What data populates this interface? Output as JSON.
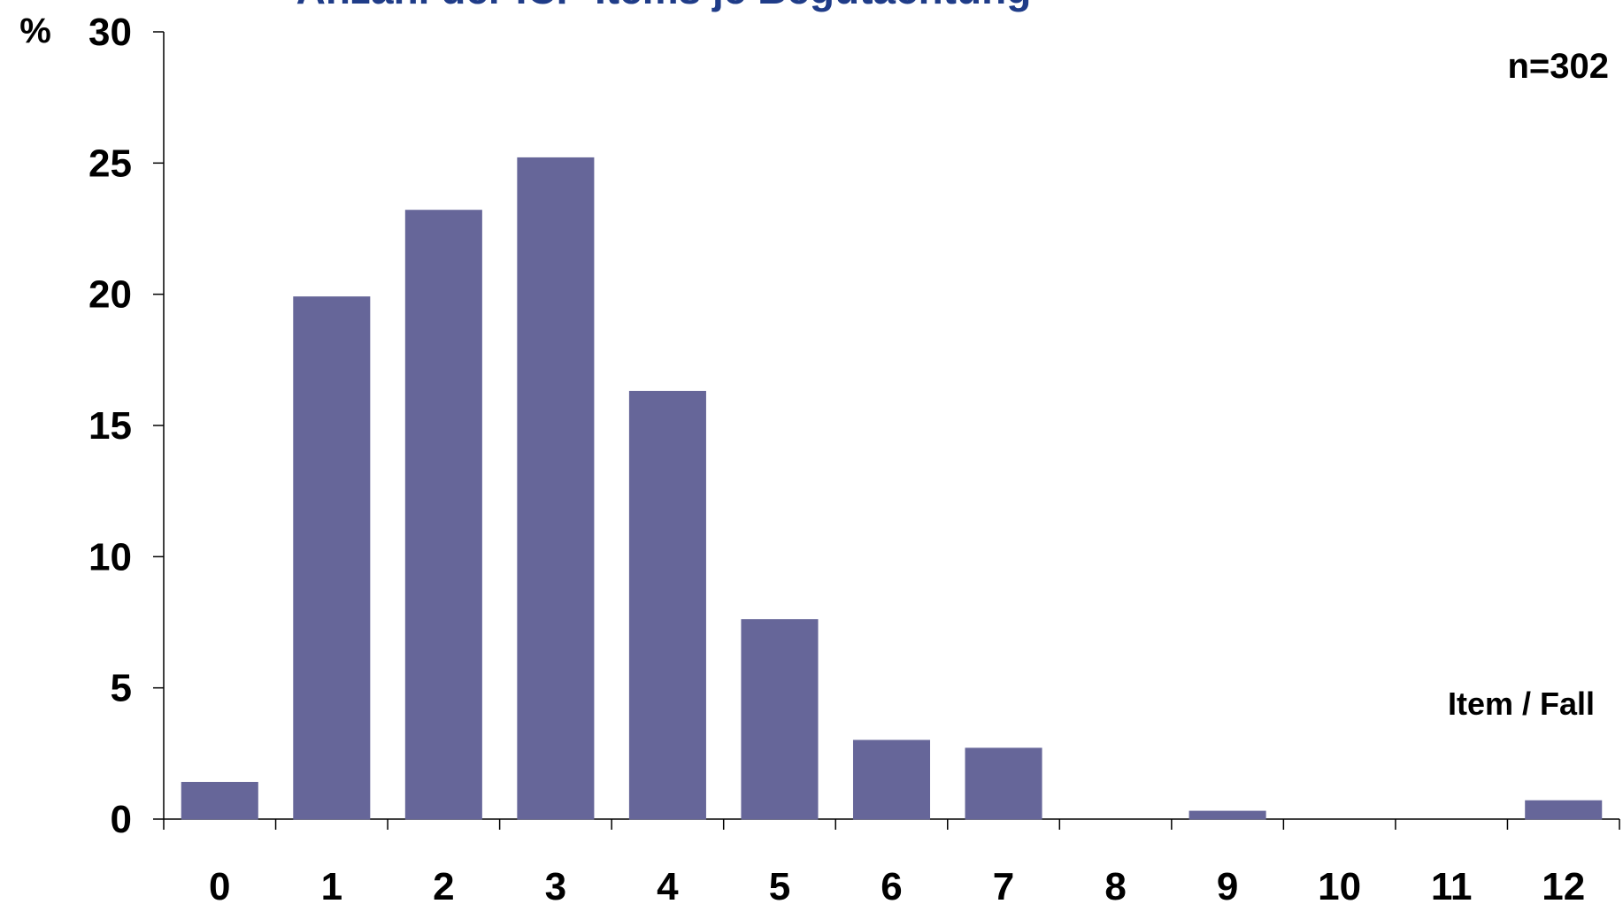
{
  "chart_data": {
    "type": "bar",
    "title": "Anzahl der ICF-Items je Begutachtung",
    "y_unit_label": "%",
    "annotation_n": "n=302",
    "annotation_axis": "Item / Fall",
    "categories": [
      "0",
      "1",
      "2",
      "3",
      "4",
      "5",
      "6",
      "7",
      "8",
      "9",
      "10",
      "11",
      "12"
    ],
    "values": [
      1.4,
      19.9,
      23.2,
      25.2,
      16.3,
      7.6,
      3.0,
      2.7,
      0,
      0.3,
      0,
      0,
      0.7
    ],
    "yticks": [
      "0",
      "5",
      "10",
      "15",
      "20",
      "25",
      "30"
    ],
    "ylim": [
      0,
      30
    ],
    "grid": false,
    "legend": "none",
    "colors": {
      "bar": "#666699",
      "title": "#1f3c88",
      "axis": "#000000"
    }
  }
}
